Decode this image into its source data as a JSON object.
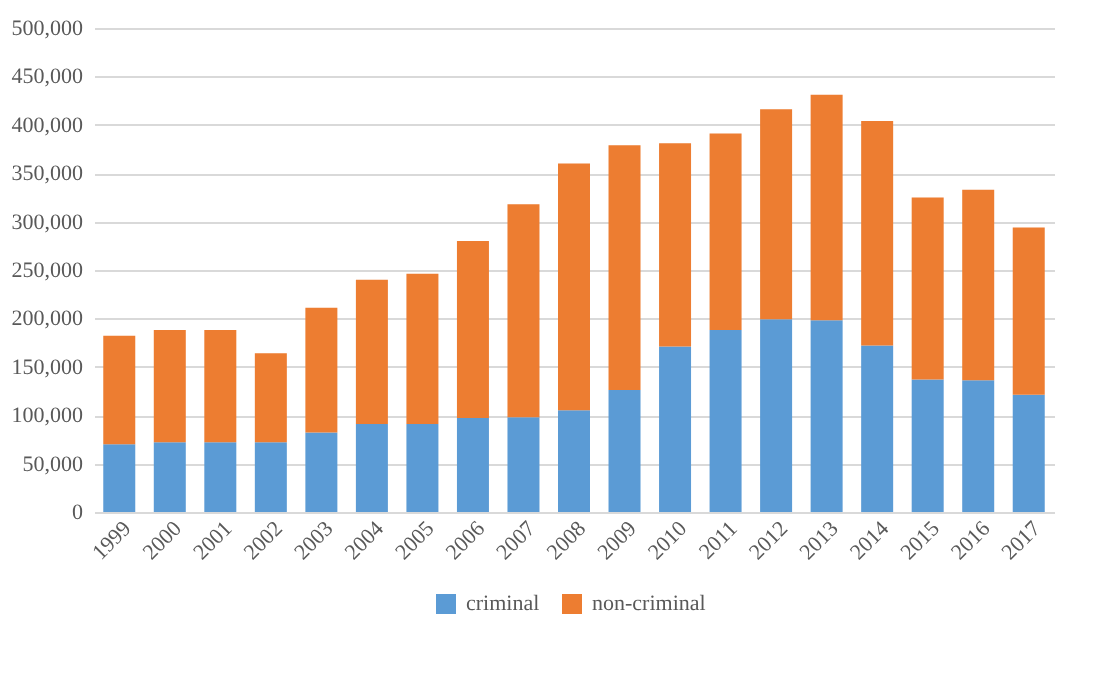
{
  "chart_data": {
    "type": "bar",
    "stacked": true,
    "categories": [
      "1999",
      "2000",
      "2001",
      "2002",
      "2003",
      "2004",
      "2005",
      "2006",
      "2007",
      "2008",
      "2009",
      "2010",
      "2011",
      "2012",
      "2013",
      "2014",
      "2015",
      "2016",
      "2017"
    ],
    "series": [
      {
        "name": "criminal",
        "color": "#5b9bd5",
        "values": [
          70000,
          72000,
          72000,
          72000,
          82000,
          91000,
          91000,
          97000,
          98000,
          105000,
          126000,
          171000,
          188000,
          199000,
          198000,
          172000,
          137000,
          136000,
          121000
        ]
      },
      {
        "name": "non-criminal",
        "color": "#ed7d31",
        "values": [
          112000,
          116000,
          116000,
          92000,
          129000,
          149000,
          155000,
          183000,
          220000,
          255000,
          253000,
          210000,
          203000,
          217000,
          233000,
          232000,
          188000,
          197000,
          173000
        ]
      }
    ],
    "ylim": [
      0,
      500000
    ],
    "yticks": [
      0,
      {
        "value": 50000,
        "label": "50,000"
      },
      {
        "value": 100000,
        "label": "100,000"
      },
      {
        "value": 150000,
        "label": "150,000"
      },
      {
        "value": 200000,
        "label": "200,000"
      },
      {
        "value": 250000,
        "label": "250,000"
      },
      {
        "value": 300000,
        "label": "300,000"
      },
      {
        "value": 350000,
        "label": "350,000"
      },
      {
        "value": 400000,
        "label": "400,000"
      },
      {
        "value": 450000,
        "label": "450,000"
      },
      {
        "value": 500000,
        "label": "500,000"
      }
    ],
    "grid": "y",
    "legend": "bottom"
  }
}
